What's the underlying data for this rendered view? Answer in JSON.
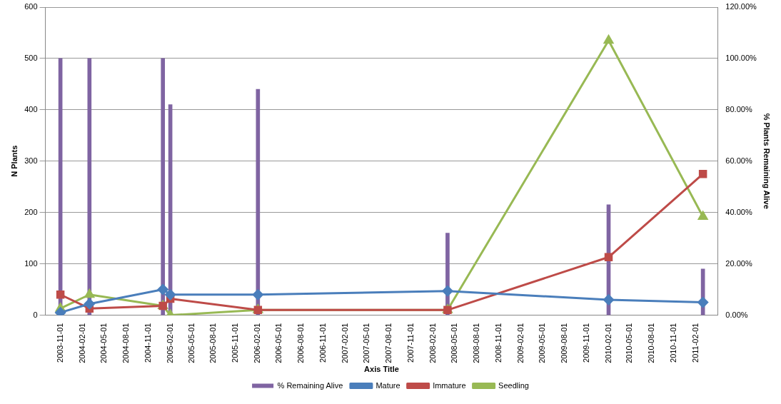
{
  "chart_data": {
    "type": "line",
    "xlabel": "Axis Title",
    "ylabel": "N Plants",
    "y2label": "% Plants Remaining Alive",
    "x": [
      "2003-11-01",
      "2004-03-01",
      "2005-01-01",
      "2005-02-01",
      "2006-02-01",
      "2008-04-01",
      "2010-02-01",
      "2011-03-01"
    ],
    "xlim": [
      "2003-10-16",
      "2011-03-16"
    ],
    "xticks": [
      "2003-11-01",
      "2004-02-01",
      "2004-05-01",
      "2004-08-01",
      "2004-11-01",
      "2005-02-01",
      "2005-05-01",
      "2005-08-01",
      "2005-11-01",
      "2006-02-01",
      "2006-05-01",
      "2006-08-01",
      "2006-11-01",
      "2007-02-01",
      "2007-05-01",
      "2007-08-01",
      "2007-11-01",
      "2008-02-01",
      "2008-05-01",
      "2008-08-01",
      "2008-11-01",
      "2009-02-01",
      "2009-05-01",
      "2009-08-01",
      "2009-11-01",
      "2010-02-01",
      "2010-05-01",
      "2010-08-01",
      "2010-11-01",
      "2011-02-01"
    ],
    "ylim": [
      0,
      600
    ],
    "yticks": [
      0,
      100,
      200,
      300,
      400,
      500,
      600
    ],
    "y2lim": [
      0,
      120
    ],
    "y2ticks": [
      {
        "value": 0,
        "label": "0.00%"
      },
      {
        "value": 20,
        "label": "20.00%"
      },
      {
        "value": 40,
        "label": "40.00%"
      },
      {
        "value": 60,
        "label": "60.00%"
      },
      {
        "value": 80,
        "label": "80.00%"
      },
      {
        "value": 100,
        "label": "100.00%"
      },
      {
        "value": 120,
        "label": "120.00%"
      }
    ],
    "grid": "y",
    "legend": "bottom",
    "series": [
      {
        "name": "% Remaining Alive",
        "type": "bar",
        "axis": "y2",
        "color": "#7f64a2",
        "values": [
          100,
          100,
          100,
          82,
          88,
          32,
          43,
          18
        ]
      },
      {
        "name": "Mature",
        "marker": "diamond",
        "color": "#4a7ebb",
        "values": [
          5,
          22,
          50,
          40,
          40,
          47,
          30,
          25
        ]
      },
      {
        "name": "Immature",
        "marker": "square",
        "color": "#be4b48",
        "values": [
          40,
          13,
          18,
          32,
          10,
          10,
          113,
          275
        ]
      },
      {
        "name": "Seedling",
        "marker": "triangle",
        "color": "#98b954",
        "values": [
          13,
          40,
          18,
          0,
          10,
          10,
          535,
          192
        ]
      }
    ]
  }
}
